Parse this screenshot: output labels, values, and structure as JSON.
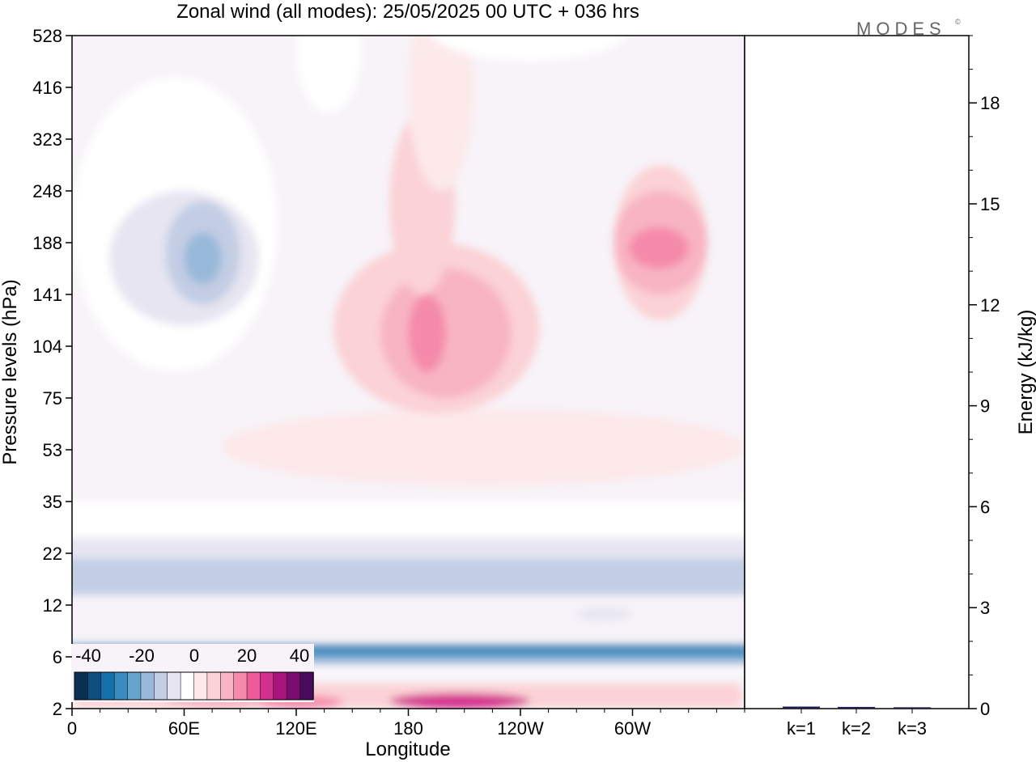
{
  "title": "Zonal wind (all modes):  25/05/2025  00 UTC  + 036 hrs",
  "logo_text": "MODES",
  "logo_mark": "©",
  "chart_data": [
    {
      "type": "heatmap",
      "title": "Zonal wind (all modes):  25/05/2025  00 UTC  + 036 hrs",
      "xlabel": "Longitude",
      "ylabel": "Pressure levels (hPa)",
      "x_ticks": [
        {
          "lon": 0,
          "label": "0"
        },
        {
          "lon": 60,
          "label": "60E"
        },
        {
          "lon": 120,
          "label": "120E"
        },
        {
          "lon": 180,
          "label": "180"
        },
        {
          "lon": 240,
          "label": "120W"
        },
        {
          "lon": 300,
          "label": "60W"
        }
      ],
      "xlim": [
        0,
        360
      ],
      "x_minor_step": 15,
      "y_levels": [
        "2",
        "6",
        "12",
        "22",
        "35",
        "53",
        "75",
        "104",
        "141",
        "188",
        "248",
        "323",
        "416",
        "528"
      ],
      "y_scale": "model levels (top to bottom)",
      "colorbar": {
        "labels": [
          "-40",
          "-20",
          "0",
          "20",
          "40"
        ],
        "label_values": [
          -40,
          -20,
          0,
          20,
          40
        ],
        "step": 5,
        "range": [
          -45,
          45
        ],
        "colors": [
          "#0b2f52",
          "#0d4f80",
          "#1670ab",
          "#3a8bbf",
          "#66a3cd",
          "#98b9d9",
          "#c3cde4",
          "#e6e5f1",
          "#ffffff",
          "#fde9ea",
          "#fbd2d6",
          "#f8b4c1",
          "#f58aaa",
          "#ef5b98",
          "#d4318e",
          "#a9157f",
          "#7a0c72",
          "#4a0a5e"
        ]
      },
      "regions": [
        {
          "v": 5,
          "lon": [
            10,
            350
          ],
          "lev": [
            0.02,
            0.48
          ]
        },
        {
          "v": 10,
          "lon": [
            50,
            110
          ],
          "lev": [
            0.0,
            0.35
          ]
        },
        {
          "v": 15,
          "lon": [
            100,
            145
          ],
          "lev": [
            0.0,
            0.25
          ]
        },
        {
          "v": 25,
          "lon": [
            170,
            245
          ],
          "lev": [
            0.0,
            0.3
          ]
        },
        {
          "v": -5,
          "lon": [
            0,
            360
          ],
          "lev": [
            0.7,
            0.95
          ]
        },
        {
          "v": -15,
          "lon": [
            0,
            360
          ],
          "lev": [
            0.82,
            1.25
          ]
        },
        {
          "v": -20,
          "lon": [
            0,
            360
          ],
          "lev": [
            0.9,
            1.2
          ]
        },
        {
          "v": -25,
          "lon": [
            0,
            360
          ],
          "lev": [
            0.98,
            1.22
          ]
        },
        {
          "v": -30,
          "lon": [
            0,
            360
          ],
          "lev": [
            1.05,
            1.22
          ]
        },
        {
          "v": -35,
          "lon": [
            10,
            350
          ],
          "lev": [
            1.15,
            1.2
          ]
        },
        {
          "v": -10,
          "lon": [
            270,
            300
          ],
          "lev": [
            1.7,
            1.95
          ]
        },
        {
          "v": -15,
          "lon": [
            0,
            360
          ],
          "lev": [
            2.2,
            2.9
          ]
        },
        {
          "v": -10,
          "lon": [
            0,
            360
          ],
          "lev": [
            2.9,
            3.3
          ]
        },
        {
          "v": -5,
          "lon": [
            0,
            360
          ],
          "lev": [
            3.3,
            3.7
          ]
        },
        {
          "v": -2,
          "lon": [
            0,
            360
          ],
          "lev": [
            3.7,
            4.0
          ]
        },
        {
          "v": 2,
          "lon": [
            80,
            360
          ],
          "lev": [
            4.3,
            5.8
          ]
        },
        {
          "v": 5,
          "lon": [
            140,
            250
          ],
          "lev": [
            5.7,
            9.0
          ]
        },
        {
          "v": 10,
          "lon": [
            165,
            235
          ],
          "lev": [
            6.0,
            8.5
          ]
        },
        {
          "v": 15,
          "lon": [
            180,
            200
          ],
          "lev": [
            6.5,
            8.0
          ]
        },
        {
          "v": 5,
          "lon": [
            290,
            340
          ],
          "lev": [
            7.5,
            10.5
          ]
        },
        {
          "v": 10,
          "lon": [
            290,
            340
          ],
          "lev": [
            8.0,
            10.0
          ]
        },
        {
          "v": 15,
          "lon": [
            298,
            330
          ],
          "lev": [
            8.5,
            9.3
          ]
        },
        {
          "v": -5,
          "lon": [
            0,
            110
          ],
          "lev": [
            6.5,
            12.2
          ]
        },
        {
          "v": -10,
          "lon": [
            20,
            100
          ],
          "lev": [
            7.4,
            10.0
          ]
        },
        {
          "v": -15,
          "lon": [
            50,
            90
          ],
          "lev": [
            7.8,
            9.8
          ]
        },
        {
          "v": -20,
          "lon": [
            60,
            80
          ],
          "lev": [
            8.2,
            9.2
          ]
        },
        {
          "v": 5,
          "lon": [
            170,
            205
          ],
          "lev": [
            8.0,
            11.5
          ]
        },
        {
          "v": 2,
          "lon": [
            180,
            215
          ],
          "lev": [
            10.0,
            13.9
          ]
        },
        {
          "v": -2,
          "lon": [
            120,
            155
          ],
          "lev": [
            11.5,
            13.9
          ]
        },
        {
          "v": -2,
          "lon": [
            190,
            300
          ],
          "lev": [
            12.5,
            13.9
          ]
        }
      ]
    },
    {
      "type": "bar",
      "ylabel": "Energy (kJ/kg)",
      "categories": [
        "k=1",
        "k=2",
        "k=3"
      ],
      "values": [
        0.06,
        0.05,
        0.04
      ],
      "ylim": [
        0,
        20
      ],
      "y_ticks": [
        0,
        3,
        6,
        9,
        12,
        15,
        18
      ],
      "y_minor_step": 1
    }
  ]
}
